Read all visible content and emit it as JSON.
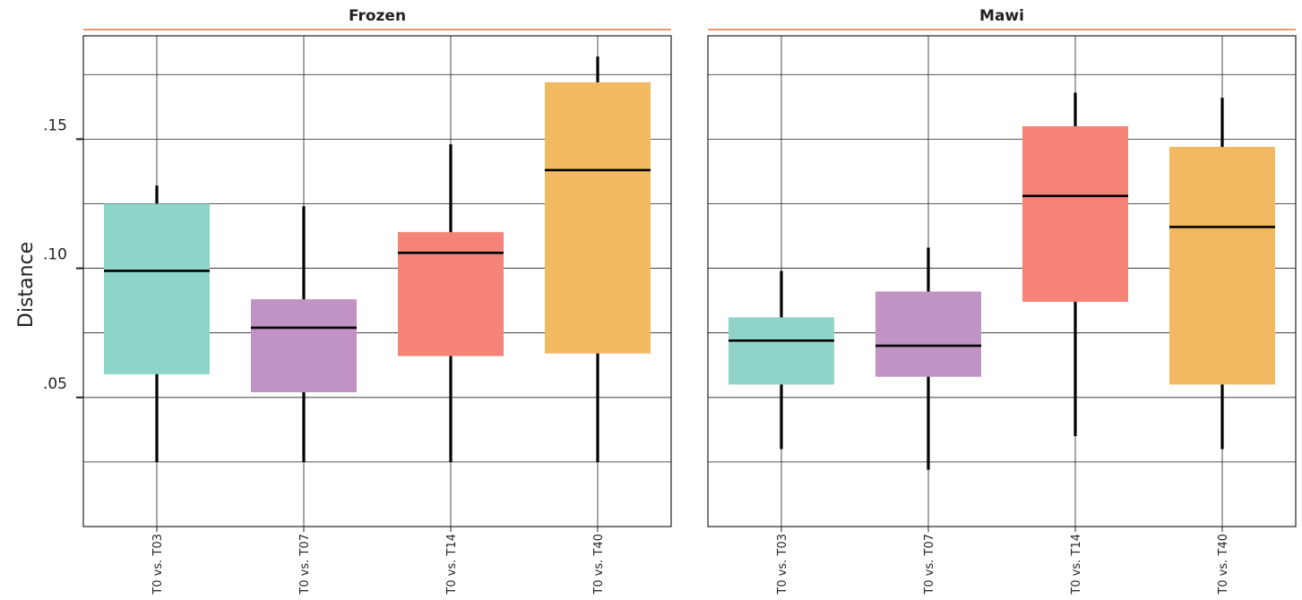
{
  "chart_data": {
    "type": "box",
    "ylabel": "Distance",
    "xlabel": "",
    "ylim": [
      0.0,
      0.19
    ],
    "y_ticks": [
      0.05,
      0.1,
      0.15
    ],
    "y_tick_labels": [
      ".05",
      ".10",
      ".15"
    ],
    "grid": true,
    "categories": [
      "T0 vs. T03",
      "T0 vs. T07",
      "T0 vs. T14",
      "T0 vs. T40"
    ],
    "category_colors": [
      "#8ed4c9",
      "#c193c4",
      "#f58378",
      "#f0b962"
    ],
    "strip_line_color": "#e8773a",
    "facets": [
      {
        "title": "Frozen",
        "boxes": [
          {
            "category": "T0 vs. T03",
            "whisker_low": 0.025,
            "q1": 0.059,
            "median": 0.099,
            "q3": 0.125,
            "whisker_high": 0.132
          },
          {
            "category": "T0 vs. T07",
            "whisker_low": 0.025,
            "q1": 0.052,
            "median": 0.077,
            "q3": 0.088,
            "whisker_high": 0.124
          },
          {
            "category": "T0 vs. T14",
            "whisker_low": 0.025,
            "q1": 0.066,
            "median": 0.106,
            "q3": 0.114,
            "whisker_high": 0.148
          },
          {
            "category": "T0 vs. T40",
            "whisker_low": 0.025,
            "q1": 0.067,
            "median": 0.138,
            "q3": 0.172,
            "whisker_high": 0.182
          }
        ]
      },
      {
        "title": "Mawi",
        "boxes": [
          {
            "category": "T0 vs. T03",
            "whisker_low": 0.03,
            "q1": 0.055,
            "median": 0.072,
            "q3": 0.081,
            "whisker_high": 0.099
          },
          {
            "category": "T0 vs. T07",
            "whisker_low": 0.022,
            "q1": 0.058,
            "median": 0.07,
            "q3": 0.091,
            "whisker_high": 0.108
          },
          {
            "category": "T0 vs. T14",
            "whisker_low": 0.035,
            "q1": 0.087,
            "median": 0.128,
            "q3": 0.155,
            "whisker_high": 0.168
          },
          {
            "category": "T0 vs. T40",
            "whisker_low": 0.03,
            "q1": 0.055,
            "median": 0.116,
            "q3": 0.147,
            "whisker_high": 0.166
          }
        ]
      }
    ]
  }
}
